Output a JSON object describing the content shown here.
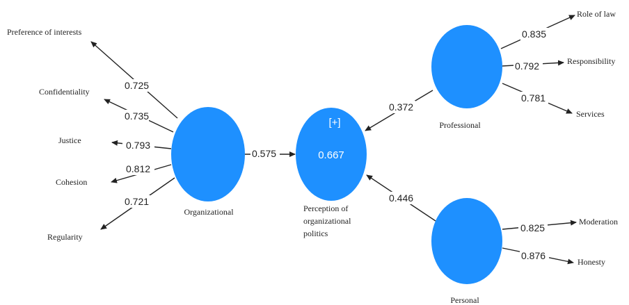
{
  "diagram": {
    "node_color": "#1e90ff",
    "constructs": {
      "organizational": {
        "label": "Organizational"
      },
      "perception": {
        "label_lines": [
          "Perception of",
          "organizational",
          "politics"
        ],
        "badge": "[+]",
        "r_squared": "0.667"
      },
      "professional": {
        "label": "Professional"
      },
      "personal": {
        "label": "Personal"
      }
    },
    "indicators": {
      "preference": "Preference of interests",
      "confidentiality": "Confidentiality",
      "justice": "Justice",
      "cohesion": "Cohesion",
      "regularity": "Regularity",
      "role_of_law": "Role of law",
      "responsibility": "Responsibility",
      "services": "Services",
      "moderation": "Moderation",
      "honesty": "Honesty"
    },
    "loadings": {
      "preference": "0.725",
      "confidentiality": "0.735",
      "justice": "0.793",
      "cohesion": "0.812",
      "regularity": "0.721",
      "role_of_law": "0.835",
      "responsibility": "0.792",
      "services": "0.781",
      "moderation": "0.825",
      "honesty": "0.876"
    },
    "paths": {
      "organizational_to_perception": "0.575",
      "professional_to_perception": "0.372",
      "personal_to_perception": "0.446"
    }
  }
}
